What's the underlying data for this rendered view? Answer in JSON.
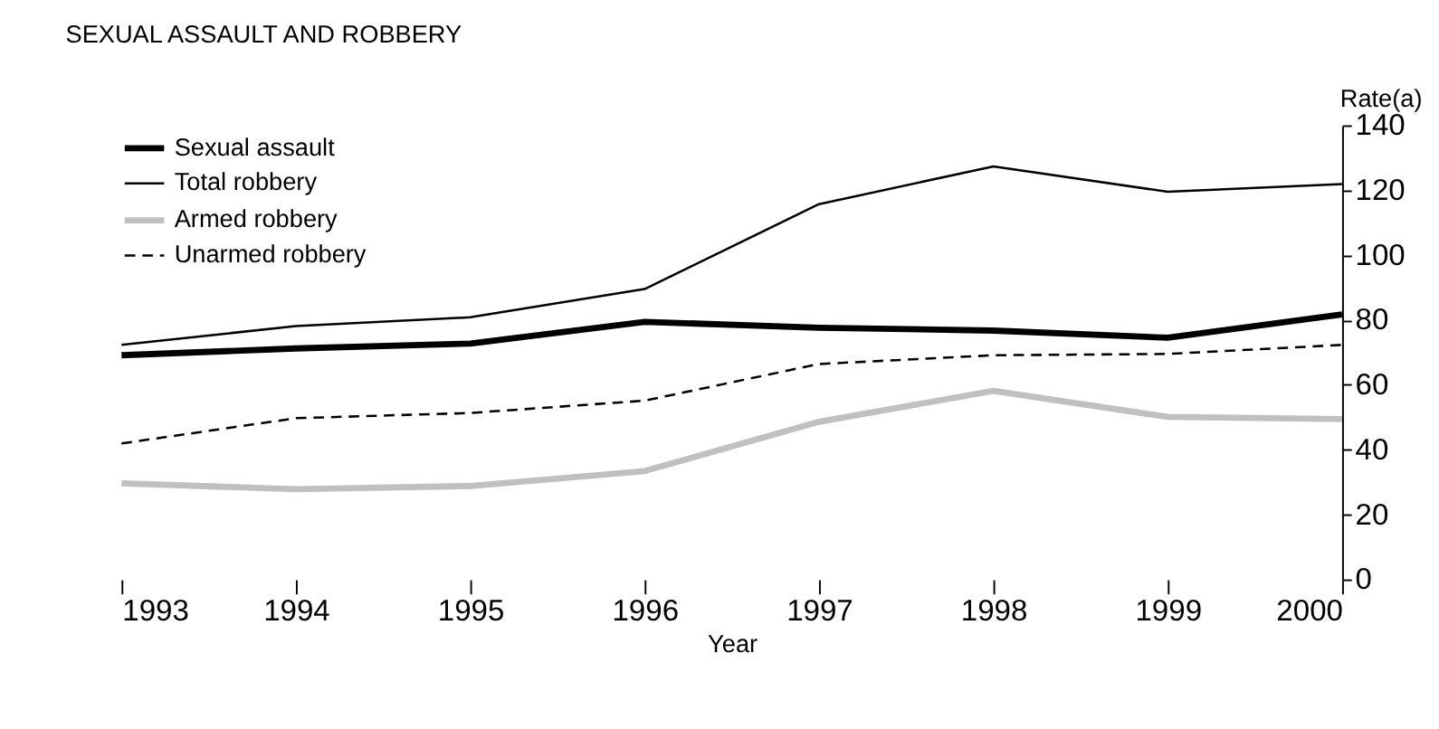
{
  "chart_data": {
    "type": "line",
    "title": "SEXUAL ASSAULT AND ROBBERY",
    "xlabel": "Year",
    "ylabel": "Rate(a)",
    "x": [
      1993,
      1994,
      1995,
      1996,
      1997,
      1998,
      1999,
      2000
    ],
    "xlim": [
      1993,
      2000
    ],
    "xticks": [
      1993,
      1994,
      1995,
      1996,
      1997,
      1998,
      1999,
      2000
    ],
    "ylim": [
      0,
      140
    ],
    "yticks": [
      0,
      20,
      40,
      60,
      80,
      100,
      120,
      140
    ],
    "grid": false,
    "legend": "top left",
    "marker": "none",
    "series": [
      {
        "name": "Sexual assault",
        "color": "#000000",
        "line_style": "solid",
        "values": [
          69.1,
          71.2,
          72.7,
          79.4,
          77.6,
          76.7,
          74.5,
          81.7
        ]
      },
      {
        "name": "Total robbery",
        "color": "#000000",
        "line_style": "solid",
        "values": [
          72.3,
          78.1,
          80.8,
          89.5,
          115.7,
          127.3,
          119.5,
          121.9
        ]
      },
      {
        "name": "Armed robbery",
        "color": "#c0c0c0",
        "line_style": "solid",
        "values": [
          29.6,
          27.8,
          28.8,
          33.4,
          48.6,
          58.1,
          50.1,
          49.4
        ]
      },
      {
        "name": "Unarmed robbery",
        "color": "#000000",
        "line_style": "dashed",
        "values": [
          41.9,
          49.7,
          51.3,
          55.1,
          66.4,
          69.1,
          69.5,
          72.3
        ]
      }
    ]
  }
}
